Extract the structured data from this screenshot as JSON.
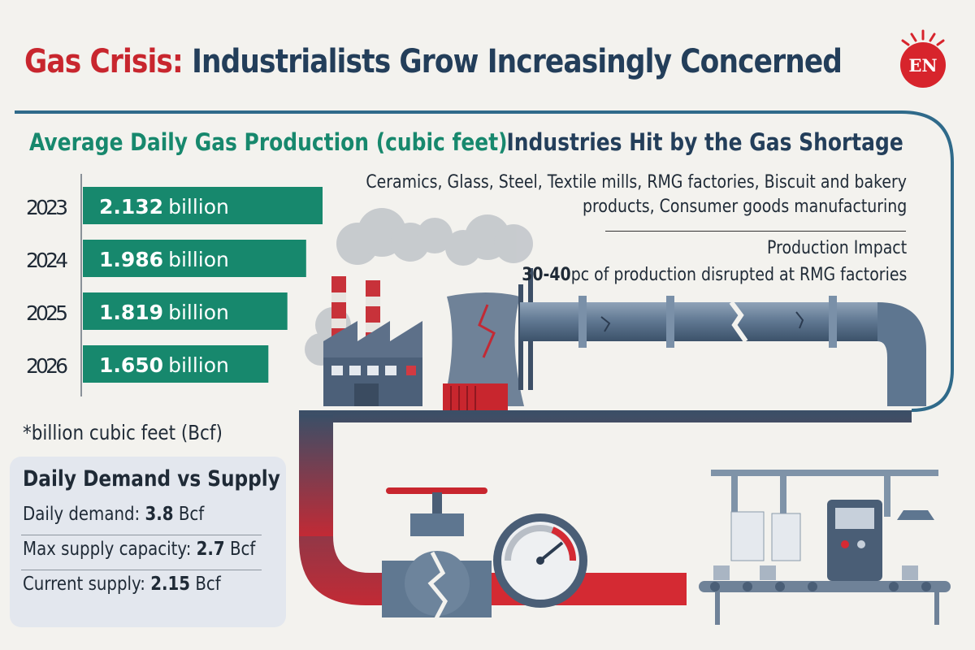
{
  "title": {
    "red": "Gas Crisis:",
    "blue": "Industrialists Grow Increasingly Concerned"
  },
  "logo": {
    "text": "EN"
  },
  "colors": {
    "accent_red": "#c8262e",
    "accent_blue": "#233e5a",
    "bar_green": "#17886d",
    "background": "#f3f2ee"
  },
  "chart_data": {
    "type": "bar",
    "orientation": "horizontal",
    "title": "Average Daily Gas Production (cubic feet)",
    "categories": [
      "2023",
      "2024",
      "2025",
      "2026"
    ],
    "values": [
      2.132,
      1.986,
      1.819,
      1.65
    ],
    "value_labels": [
      {
        "num": "2.132",
        "unit": "billion"
      },
      {
        "num": "1.986",
        "unit": "billion"
      },
      {
        "num": "1.819",
        "unit": "billion"
      },
      {
        "num": "1.650",
        "unit": "billion"
      }
    ],
    "xlim": [
      0,
      2.132
    ],
    "grid": false,
    "note": "*billion cubic feet (Bcf)"
  },
  "demand_supply": {
    "title": "Daily Demand vs Supply",
    "rows": [
      {
        "label": "Daily demand:",
        "value": "3.8",
        "unit": "Bcf"
      },
      {
        "label": "Max supply capacity:",
        "value": "2.7",
        "unit": "Bcf"
      },
      {
        "label": "Current supply:",
        "value": "2.15",
        "unit": "Bcf"
      }
    ]
  },
  "industries": {
    "title": "Industries Hit by the Gas Shortage",
    "list_line1": "Ceramics, Glass, Steel, Textile mills, RMG factories, Biscuit and bakery",
    "list_line2": "products, Consumer goods manufacturing",
    "impact_label": "Production Impact",
    "impact_value": "30-40",
    "impact_text": "pc of production disrupted at RMG factories"
  },
  "illustration": {
    "factory": "factory-icon",
    "cooling_tower": "cooling-tower-icon",
    "pipeline": "cracked-pipeline-icon",
    "valve": "broken-valve-icon",
    "gauge": "pressure-gauge-icon",
    "conveyor": "conveyor-machine-icon"
  }
}
